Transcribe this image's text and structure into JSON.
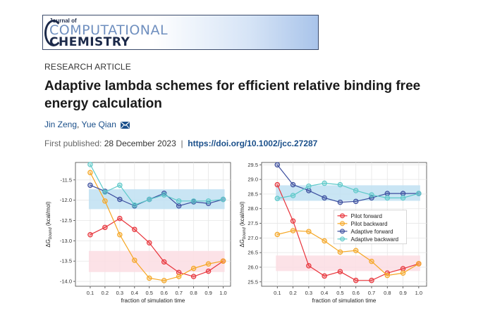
{
  "journal": {
    "of": "Journal of",
    "line1": "COMPUTATIONAL",
    "line2": "CHEMISTRY"
  },
  "article": {
    "type": "RESEARCH ARTICLE",
    "title": "Adaptive lambda schemes for efficient relative binding free energy calculation",
    "authors": [
      "Jin Zeng",
      "Yue Qian"
    ],
    "author_separator": ",",
    "published_label": "First published:",
    "published_date": "28 December 2023",
    "separator": "|",
    "doi": "https://doi.org/10.1002/jcc.27287",
    "mail_icon": "envelope-icon"
  },
  "colors": {
    "pilot_forward": "#e8333a",
    "pilot_backward": "#f5a623",
    "adaptive_forward": "#3a4d9e",
    "adaptive_backward": "#5cc9c9",
    "band_blue": "#bfe0f2",
    "band_pink": "#fbdde3",
    "link": "#1a4f8a"
  },
  "chart_data": [
    {
      "type": "line",
      "xlabel": "fraction of simulation time",
      "ylabel": "ΔG_bound (kcal/mol)",
      "x": [
        0.1,
        0.2,
        0.3,
        0.4,
        0.5,
        0.6,
        0.7,
        0.8,
        0.9,
        1.0
      ],
      "xticks": [
        "0.1",
        "0.2",
        "0.3",
        "0.4",
        "0.5",
        "0.6",
        "0.7",
        "0.8",
        "0.9",
        "1.0"
      ],
      "yticks": [
        "-11.5",
        "-12.0",
        "-12.5",
        "-13.0",
        "-13.5",
        "-14.0"
      ],
      "ylim": [
        -14.12,
        -11.07
      ],
      "bands": [
        {
          "color": "blue",
          "range": [
            -12.22,
            -11.73
          ]
        },
        {
          "color": "pink",
          "range": [
            -13.77,
            -13.25
          ]
        }
      ],
      "series": [
        {
          "key": "pilot_forward",
          "values": [
            -12.85,
            -12.67,
            -12.45,
            -12.72,
            -13.05,
            -13.52,
            -13.78,
            -13.88,
            -13.75,
            -13.5
          ]
        },
        {
          "key": "pilot_backward",
          "values": [
            -11.32,
            -12.02,
            -12.85,
            -13.48,
            -13.92,
            -13.98,
            -13.88,
            -13.68,
            -13.57,
            -13.5
          ]
        },
        {
          "key": "adaptive_forward",
          "values": [
            -11.63,
            -11.78,
            -11.98,
            -12.14,
            -11.98,
            -11.83,
            -12.14,
            -12.04,
            -12.08,
            -11.98
          ]
        },
        {
          "key": "adaptive_backward",
          "values": [
            -11.12,
            -11.8,
            -11.63,
            -12.12,
            -11.98,
            -11.87,
            -12.02,
            -12.02,
            -12.02,
            -11.98
          ]
        }
      ]
    },
    {
      "type": "line",
      "xlabel": "fraction of simulation time",
      "ylabel": "ΔG_bound (kcal/mol)",
      "x": [
        0.1,
        0.2,
        0.3,
        0.4,
        0.5,
        0.6,
        0.7,
        0.8,
        0.9,
        1.0
      ],
      "xticks": [
        "0.1",
        "0.2",
        "0.3",
        "0.4",
        "0.5",
        "0.6",
        "0.7",
        "0.8",
        "0.9",
        "1.0"
      ],
      "yticks": [
        "29.5",
        "29.0",
        "28.5",
        "28.0",
        "27.5",
        "27.0",
        "26.5",
        "26.0",
        "25.5"
      ],
      "ylim": [
        25.35,
        29.58
      ],
      "bands": [
        {
          "color": "blue",
          "range": [
            28.27,
            28.8
          ]
        },
        {
          "color": "pink",
          "range": [
            25.87,
            26.4
          ]
        }
      ],
      "legend": {
        "placement": "center-right",
        "entries": [
          {
            "key": "pilot_forward",
            "label": "Pilot forward"
          },
          {
            "key": "pilot_backward",
            "label": "Pilot backward"
          },
          {
            "key": "adaptive_forward",
            "label": "Adaptive forward"
          },
          {
            "key": "adaptive_backward",
            "label": "Adaptive backward"
          }
        ]
      },
      "series": [
        {
          "key": "pilot_forward",
          "values": [
            28.82,
            27.58,
            26.05,
            25.7,
            25.85,
            25.55,
            25.55,
            25.8,
            25.95,
            26.12
          ]
        },
        {
          "key": "pilot_backward",
          "values": [
            27.12,
            27.25,
            27.22,
            26.9,
            26.52,
            26.57,
            26.2,
            25.72,
            25.8,
            26.12
          ]
        },
        {
          "key": "adaptive_forward",
          "values": [
            29.5,
            28.82,
            28.62,
            28.37,
            28.22,
            28.25,
            28.37,
            28.52,
            28.52,
            28.52
          ]
        },
        {
          "key": "adaptive_backward",
          "values": [
            28.35,
            28.45,
            28.77,
            28.87,
            28.82,
            28.62,
            28.47,
            28.37,
            28.37,
            28.52
          ]
        }
      ]
    }
  ]
}
